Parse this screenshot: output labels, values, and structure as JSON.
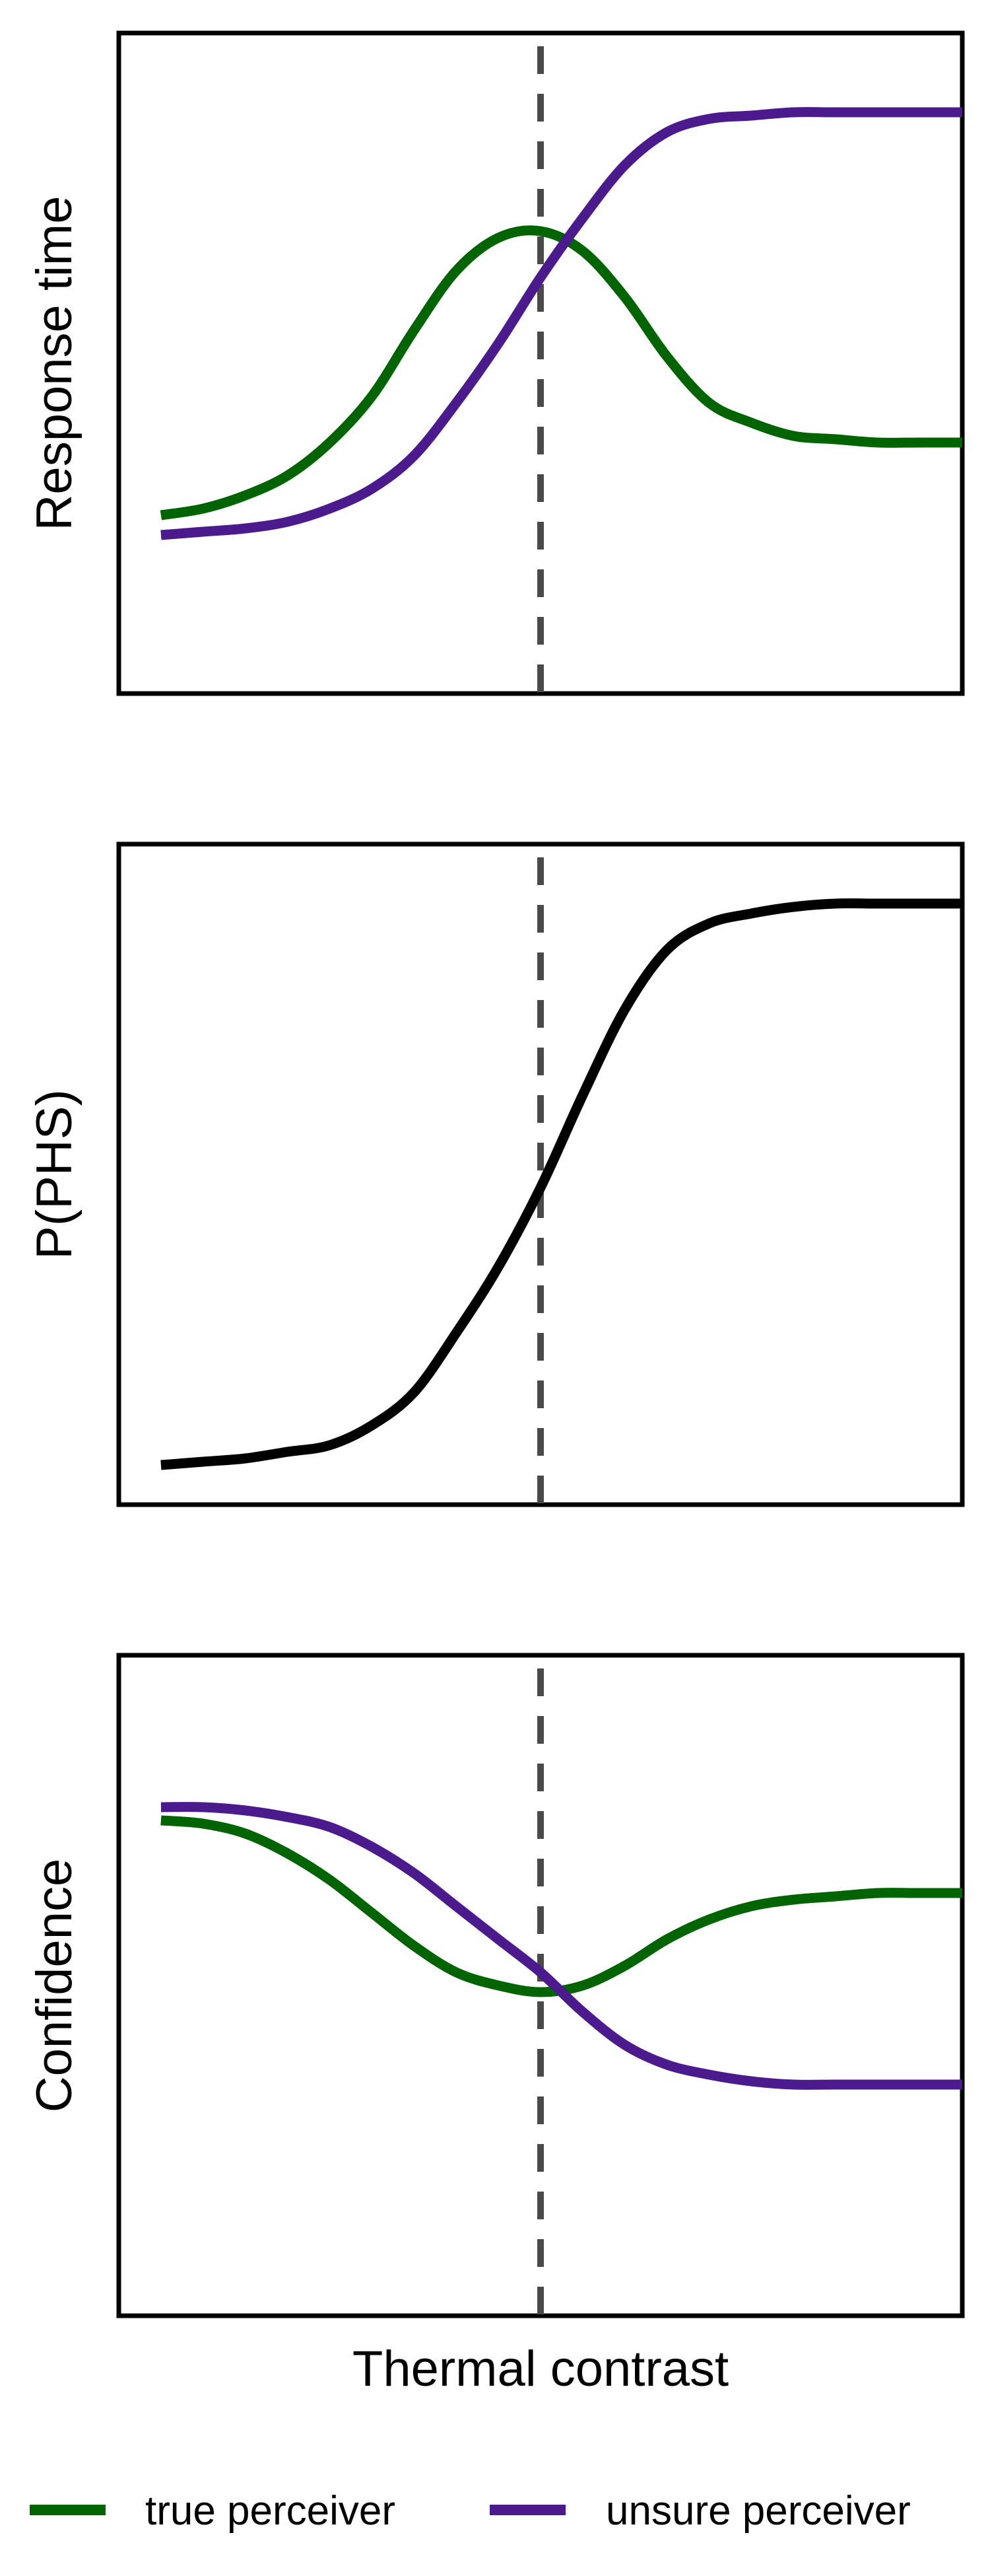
{
  "chart_data": {
    "type": "line",
    "xlabel": "Thermal contrast",
    "x_range": [
      -1,
      1
    ],
    "threshold_x": 0,
    "legend": [
      {
        "key": "true",
        "label": "true perceiver",
        "color": "#006400"
      },
      {
        "key": "unsure",
        "label": "unsure perceiver",
        "color": "#4B1A8C"
      }
    ],
    "panels": [
      {
        "ylabel": "Response time",
        "ylim": [
          0,
          1
        ],
        "series": [
          {
            "name": "true perceiver",
            "color": "#006400",
            "x": [
              -0.9,
              -0.8,
              -0.7,
              -0.6,
              -0.5,
              -0.4,
              -0.3,
              -0.2,
              -0.1,
              0.0,
              0.1,
              0.2,
              0.3,
              0.4,
              0.5,
              0.6,
              0.7,
              0.8,
              0.9,
              1.0
            ],
            "y": [
              0.27,
              0.28,
              0.3,
              0.33,
              0.38,
              0.45,
              0.55,
              0.64,
              0.69,
              0.7,
              0.67,
              0.6,
              0.51,
              0.44,
              0.41,
              0.39,
              0.385,
              0.38,
              0.38,
              0.38
            ]
          },
          {
            "name": "unsure perceiver",
            "color": "#4B1A8C",
            "x": [
              -0.9,
              -0.8,
              -0.7,
              -0.6,
              -0.5,
              -0.4,
              -0.3,
              -0.2,
              -0.1,
              0.0,
              0.1,
              0.2,
              0.3,
              0.4,
              0.5,
              0.6,
              0.7,
              0.8,
              0.9,
              1.0
            ],
            "y": [
              0.24,
              0.245,
              0.25,
              0.26,
              0.28,
              0.31,
              0.36,
              0.44,
              0.53,
              0.63,
              0.72,
              0.8,
              0.85,
              0.87,
              0.875,
              0.88,
              0.88,
              0.88,
              0.88,
              0.88
            ]
          }
        ]
      },
      {
        "ylabel": "P(PHS)",
        "ylim": [
          0,
          1
        ],
        "series": [
          {
            "name": "P(PHS)",
            "color": "#000000",
            "x": [
              -0.9,
              -0.8,
              -0.7,
              -0.6,
              -0.5,
              -0.4,
              -0.3,
              -0.2,
              -0.1,
              0.0,
              0.1,
              0.2,
              0.3,
              0.4,
              0.5,
              0.6,
              0.7,
              0.8,
              0.9,
              1.0
            ],
            "y": [
              0.06,
              0.065,
              0.07,
              0.08,
              0.09,
              0.12,
              0.17,
              0.26,
              0.36,
              0.48,
              0.62,
              0.75,
              0.84,
              0.88,
              0.895,
              0.905,
              0.91,
              0.91,
              0.91,
              0.91
            ]
          }
        ]
      },
      {
        "ylabel": "Confidence",
        "ylim": [
          0,
          1
        ],
        "series": [
          {
            "name": "true perceiver",
            "color": "#006400",
            "x": [
              -0.9,
              -0.8,
              -0.7,
              -0.6,
              -0.5,
              -0.4,
              -0.3,
              -0.2,
              -0.1,
              0.0,
              0.1,
              0.2,
              0.3,
              0.4,
              0.5,
              0.6,
              0.7,
              0.8,
              0.9,
              1.0
            ],
            "y": [
              0.75,
              0.745,
              0.73,
              0.7,
              0.66,
              0.61,
              0.56,
              0.52,
              0.5,
              0.49,
              0.5,
              0.53,
              0.57,
              0.6,
              0.62,
              0.63,
              0.635,
              0.64,
              0.64,
              0.64
            ]
          },
          {
            "name": "unsure perceiver",
            "color": "#4B1A8C",
            "x": [
              -0.9,
              -0.8,
              -0.7,
              -0.6,
              -0.5,
              -0.4,
              -0.3,
              -0.2,
              -0.1,
              0.0,
              0.1,
              0.2,
              0.3,
              0.4,
              0.5,
              0.6,
              0.7,
              0.8,
              0.9,
              1.0
            ],
            "y": [
              0.77,
              0.77,
              0.765,
              0.755,
              0.74,
              0.71,
              0.67,
              0.62,
              0.57,
              0.52,
              0.46,
              0.41,
              0.38,
              0.365,
              0.355,
              0.35,
              0.35,
              0.35,
              0.35,
              0.35
            ]
          }
        ]
      }
    ]
  }
}
